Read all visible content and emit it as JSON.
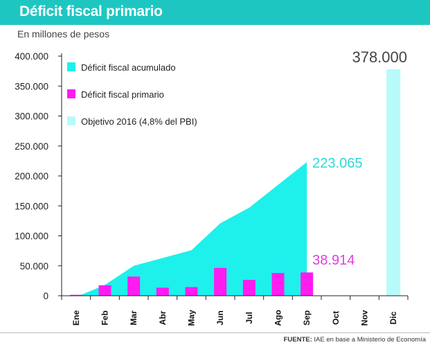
{
  "header": {
    "title": "Déficit fiscal primario"
  },
  "subtitle": "En millones de pesos",
  "footer": {
    "source_label": "FUENTE:",
    "source_text": "IAE en base a Ministerio de Economía"
  },
  "colors": {
    "accent": "#1ec6c2",
    "accumulated": "#1ef0ec",
    "primary": "#ff1cf0",
    "target": "#b6fbfa",
    "accumulated_label": "#2ed6d6",
    "primary_label": "#e13fdf"
  },
  "chart_data": {
    "type": "area",
    "title": "Déficit fiscal primario",
    "ylabel": "En millones de pesos",
    "ylim": [
      0,
      400000
    ],
    "y_ticks": [
      0,
      50000,
      100000,
      150000,
      200000,
      250000,
      300000,
      350000,
      400000
    ],
    "y_tick_labels": [
      "0",
      "50.000",
      "100.000",
      "150.000",
      "200.000",
      "250.000",
      "300.000",
      "350.000",
      "400.000"
    ],
    "categories": [
      "Ene",
      "Feb",
      "Mar",
      "Abr",
      "May",
      "Jun",
      "Jul",
      "Ago",
      "Sep",
      "Oct",
      "Nov",
      "Dic"
    ],
    "series": [
      {
        "name": "Déficit fiscal acumulado",
        "type": "area",
        "values": [
          1500,
          18000,
          50000,
          63000,
          76000,
          121000,
          147000,
          185000,
          223065,
          null,
          null,
          null
        ]
      },
      {
        "name": "Déficit fiscal primario",
        "type": "bar",
        "values": [
          1500,
          17500,
          32000,
          13500,
          14500,
          46500,
          26500,
          38000,
          38914,
          null,
          null,
          null
        ]
      },
      {
        "name": "Objetivo 2016 (4,8% del PBI)",
        "type": "bar",
        "values": [
          null,
          null,
          null,
          null,
          null,
          null,
          null,
          null,
          null,
          null,
          null,
          378000
        ]
      }
    ],
    "annotations": [
      {
        "text": "223.065",
        "series": "Déficit fiscal acumulado",
        "category": "Sep"
      },
      {
        "text": "38.914",
        "series": "Déficit fiscal primario",
        "category": "Sep"
      },
      {
        "text": "378.000",
        "series": "Objetivo 2016 (4,8% del PBI)",
        "category": "Dic"
      }
    ],
    "legend": {
      "position": "top-left",
      "items": [
        "Déficit fiscal acumulado",
        "Déficit fiscal primario",
        "Objetivo 2016 (4,8% del PBI)"
      ]
    }
  }
}
